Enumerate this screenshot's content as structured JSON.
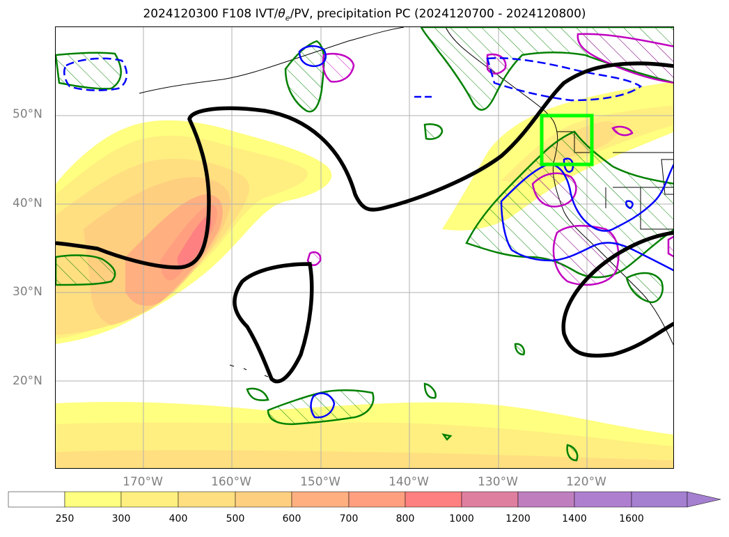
{
  "title": "2024120300 F108 IVT/θe/PV, precipitation PC (2024120700 - 2024120800)",
  "title_parts": {
    "prefix": "2024120300 F108 IVT/",
    "theta": "θ",
    "sub": "e",
    "suffix": "/PV, precipitation PC (2024120700 - 2024120800)"
  },
  "lat_labels": [
    "50°N",
    "40°N",
    "30°N",
    "20°N"
  ],
  "lon_labels": [
    "170°W",
    "160°W",
    "150°W",
    "140°W",
    "130°W",
    "120°W"
  ],
  "colorbar": {
    "ticks": [
      "250",
      "300",
      "400",
      "500",
      "600",
      "700",
      "800",
      "1000",
      "1200",
      "1400",
      "1600"
    ],
    "colors": [
      "#ffffff",
      "#ffff80",
      "#ffef80",
      "#ffdf80",
      "#ffcf80",
      "#ffaf80",
      "#ff9f80",
      "#ff8080",
      "#df7f9f",
      "#bf7fbf",
      "#af7fcf",
      "#a57fd0"
    ]
  },
  "legend_colors": {
    "theta_e_contour": "#000000",
    "pv_contour": "#0000ff",
    "precip_hatch": "#008000",
    "precip_magenta": "#c000c0",
    "highlight_box": "#00ff00"
  }
}
